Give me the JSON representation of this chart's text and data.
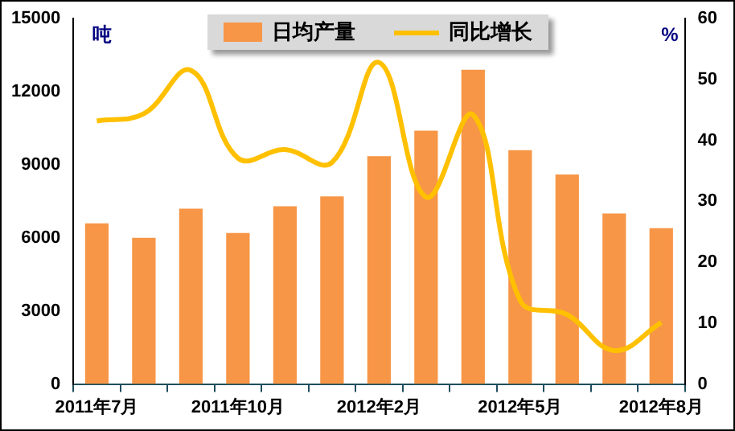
{
  "chart_data": {
    "type": "bar",
    "categories": [
      "2011年7月",
      null,
      null,
      "2011年10月",
      null,
      null,
      "2012年2月",
      null,
      null,
      "2012年5月",
      null,
      null,
      "2012年8月"
    ],
    "series": [
      {
        "name": "日均产量",
        "color": "#f79646",
        "values": [
          6600,
          6000,
          7200,
          6200,
          7300,
          7700,
          9350,
          10400,
          12900,
          9600,
          8600,
          7000,
          6400
        ]
      },
      {
        "name": "同比增长",
        "type": "line",
        "axis": "y2",
        "color": "#ffc000",
        "values": [
          43.2,
          44.4,
          51.5,
          37.1,
          38.5,
          36.4,
          52.8,
          30.7,
          44.2,
          13.7,
          11.4,
          5.5,
          10.1
        ]
      }
    ],
    "ylabel": "吨",
    "y2label": "%",
    "ylim": [
      0,
      15000
    ],
    "yticks": [
      0,
      3000,
      6000,
      9000,
      12000,
      15000
    ],
    "y2lim": [
      0,
      60
    ],
    "y2ticks": [
      0,
      10,
      20,
      30,
      40,
      50,
      60
    ],
    "grid": false,
    "legend": "top",
    "marker": "none"
  }
}
